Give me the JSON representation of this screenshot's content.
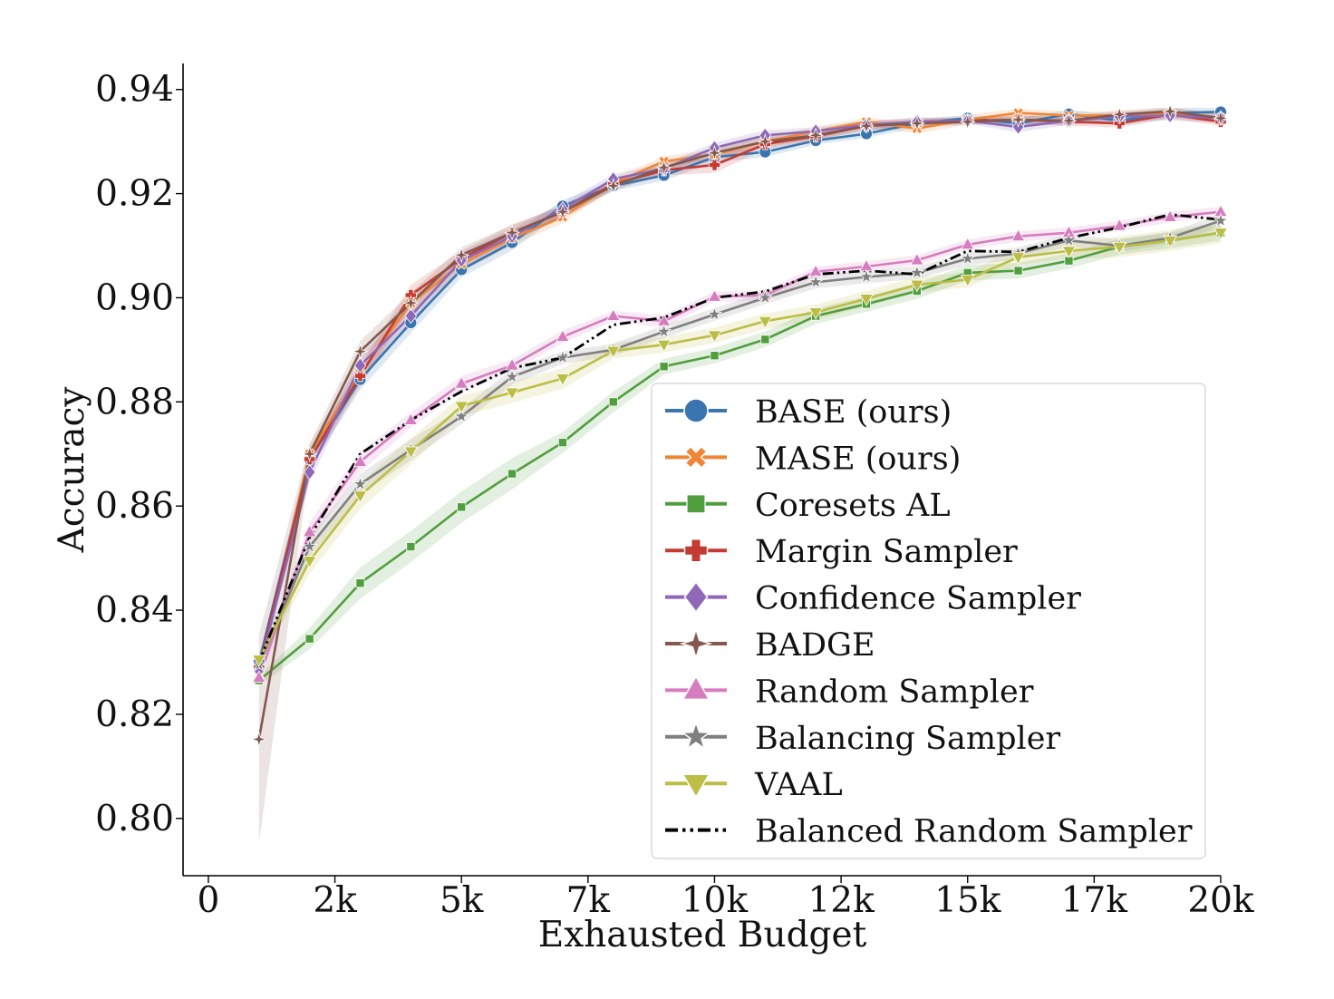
{
  "chart_data": {
    "type": "line",
    "title": "",
    "xlabel": "Exhausted Budget",
    "ylabel": "Accuracy",
    "xlim": [
      -500,
      20000
    ],
    "ylim": [
      0.789,
      0.945
    ],
    "xticks": [
      0,
      2500,
      5000,
      7500,
      10000,
      12500,
      15000,
      17500,
      20000
    ],
    "xticklabels": [
      "0",
      "2k",
      "5k",
      "7k",
      "10k",
      "12k",
      "15k",
      "17k",
      "20k"
    ],
    "yticks": [
      0.8,
      0.82,
      0.84,
      0.86,
      0.88,
      0.9,
      0.92,
      0.94
    ],
    "yticklabels": [
      "0.80",
      "0.82",
      "0.84",
      "0.86",
      "0.88",
      "0.90",
      "0.92",
      "0.94"
    ],
    "grid": false,
    "legend_position": "lower-right",
    "x": [
      1000,
      2000,
      3000,
      4000,
      5000,
      6000,
      7000,
      8000,
      9000,
      10000,
      11000,
      12000,
      13000,
      14000,
      15000,
      16000,
      17000,
      18000,
      19000,
      20000
    ],
    "series": [
      {
        "name": "BASE (ours)",
        "color": "#3b75af",
        "marker": "circle",
        "dash": "solid",
        "values": [
          0.83,
          0.869,
          0.8843,
          0.8952,
          0.9054,
          0.9106,
          0.9176,
          0.9215,
          0.9235,
          0.927,
          0.928,
          0.9302,
          0.9315,
          0.9335,
          0.9345,
          0.9335,
          0.9353,
          0.934,
          0.9355,
          0.9357
        ],
        "band": [
          0.001,
          0.002,
          0.002,
          0.002,
          0.0015,
          0.0015,
          0.0012,
          0.001,
          0.001,
          0.001,
          0.001,
          0.0008,
          0.0008,
          0.0008,
          0.0006,
          0.001,
          0.0008,
          0.001,
          0.001,
          0.0008
        ]
      },
      {
        "name": "MASE (ours)",
        "color": "#ef8636",
        "marker": "x",
        "dash": "solid",
        "values": [
          0.8275,
          0.87,
          0.8855,
          0.899,
          0.9065,
          0.9115,
          0.9155,
          0.922,
          0.9262,
          0.9275,
          0.93,
          0.932,
          0.9338,
          0.9325,
          0.9342,
          0.9355,
          0.935,
          0.935,
          0.9355,
          0.9345
        ],
        "band": [
          0.001,
          0.002,
          0.002,
          0.002,
          0.0015,
          0.0015,
          0.0012,
          0.001,
          0.001,
          0.001,
          0.001,
          0.0008,
          0.0008,
          0.001,
          0.001,
          0.0008,
          0.0008,
          0.0008,
          0.001,
          0.001
        ]
      },
      {
        "name": "Coresets AL",
        "color": "#519e3e",
        "marker": "square",
        "dash": "solid",
        "values": [
          0.8265,
          0.8345,
          0.8452,
          0.8522,
          0.8598,
          0.8662,
          0.8722,
          0.88,
          0.8868,
          0.8889,
          0.892,
          0.8965,
          0.8988,
          0.9013,
          0.9048,
          0.9052,
          0.9071,
          0.9098,
          0.911,
          0.9125
        ],
        "band": [
          0.001,
          0.002,
          0.003,
          0.003,
          0.003,
          0.003,
          0.002,
          0.002,
          0.0015,
          0.0015,
          0.0015,
          0.0015,
          0.0015,
          0.0015,
          0.0015,
          0.0015,
          0.0015,
          0.0015,
          0.0015,
          0.0015
        ]
      },
      {
        "name": "Margin Sampler",
        "color": "#c53a32",
        "marker": "plus",
        "dash": "solid",
        "values": [
          0.829,
          0.869,
          0.885,
          0.9005,
          0.9075,
          0.9125,
          0.9165,
          0.9218,
          0.9245,
          0.9255,
          0.9295,
          0.931,
          0.933,
          0.9338,
          0.934,
          0.9342,
          0.9338,
          0.9335,
          0.9352,
          0.9338
        ],
        "band": [
          0.001,
          0.002,
          0.002,
          0.002,
          0.0015,
          0.0015,
          0.0012,
          0.001,
          0.001,
          0.0015,
          0.001,
          0.0008,
          0.0008,
          0.0008,
          0.0006,
          0.0008,
          0.0008,
          0.0008,
          0.0008,
          0.0008
        ]
      },
      {
        "name": "Confidence Sampler",
        "color": "#8d69b8",
        "marker": "diamond",
        "dash": "solid",
        "values": [
          0.8285,
          0.8665,
          0.887,
          0.8965,
          0.9072,
          0.9118,
          0.917,
          0.9228,
          0.9248,
          0.9288,
          0.9312,
          0.932,
          0.9332,
          0.9338,
          0.934,
          0.9328,
          0.934,
          0.9348,
          0.935,
          0.9345
        ],
        "band": [
          0.001,
          0.002,
          0.002,
          0.002,
          0.0015,
          0.0015,
          0.0012,
          0.001,
          0.001,
          0.001,
          0.001,
          0.0008,
          0.0008,
          0.0008,
          0.0006,
          0.001,
          0.0008,
          0.0008,
          0.001,
          0.0008
        ]
      },
      {
        "name": "BADGE",
        "color": "#84584e",
        "marker": "star4",
        "dash": "solid",
        "values": [
          0.8152,
          0.87,
          0.8897,
          0.899,
          0.9082,
          0.9125,
          0.9165,
          0.9215,
          0.925,
          0.9278,
          0.93,
          0.9312,
          0.933,
          0.9335,
          0.9338,
          0.9342,
          0.934,
          0.9352,
          0.9358,
          0.9345
        ],
        "band": [
          0.02,
          0.002,
          0.002,
          0.002,
          0.0015,
          0.0015,
          0.0012,
          0.001,
          0.001,
          0.001,
          0.001,
          0.0008,
          0.0008,
          0.0008,
          0.0006,
          0.0008,
          0.0008,
          0.0008,
          0.0008,
          0.0008
        ]
      },
      {
        "name": "Random Sampler",
        "color": "#d57dbe",
        "marker": "triangle-up",
        "dash": "solid",
        "values": [
          0.827,
          0.855,
          0.8685,
          0.8765,
          0.8835,
          0.887,
          0.8925,
          0.8965,
          0.8955,
          0.9002,
          0.9005,
          0.905,
          0.906,
          0.9072,
          0.9102,
          0.9118,
          0.9125,
          0.9138,
          0.9155,
          0.9165
        ],
        "band": [
          0.001,
          0.002,
          0.002,
          0.0015,
          0.0015,
          0.0012,
          0.0012,
          0.001,
          0.0012,
          0.001,
          0.001,
          0.001,
          0.001,
          0.001,
          0.001,
          0.001,
          0.001,
          0.001,
          0.001,
          0.001
        ]
      },
      {
        "name": "Balancing Sampler",
        "color": "#7f7f7f",
        "marker": "star",
        "dash": "solid",
        "values": [
          0.8295,
          0.8522,
          0.8642,
          0.8708,
          0.8772,
          0.8848,
          0.8885,
          0.89,
          0.8935,
          0.8968,
          0.9,
          0.903,
          0.904,
          0.9048,
          0.9075,
          0.9085,
          0.911,
          0.91,
          0.9115,
          0.9148
        ],
        "band": [
          0.001,
          0.002,
          0.002,
          0.002,
          0.0015,
          0.0015,
          0.0012,
          0.0012,
          0.0012,
          0.0012,
          0.0012,
          0.0012,
          0.0012,
          0.0012,
          0.0012,
          0.0012,
          0.0012,
          0.0012,
          0.0012,
          0.0012
        ]
      },
      {
        "name": "VAAL",
        "color": "#bcbd45",
        "marker": "triangle-down",
        "dash": "solid",
        "values": [
          0.8305,
          0.8495,
          0.862,
          0.8705,
          0.8792,
          0.8818,
          0.8845,
          0.8898,
          0.891,
          0.8928,
          0.8955,
          0.8972,
          0.8998,
          0.9025,
          0.9035,
          0.9078,
          0.909,
          0.9098,
          0.911,
          0.9125
        ],
        "band": [
          0.001,
          0.0025,
          0.0025,
          0.0025,
          0.002,
          0.002,
          0.002,
          0.0015,
          0.0015,
          0.0015,
          0.0015,
          0.0015,
          0.0015,
          0.0015,
          0.0015,
          0.0015,
          0.0015,
          0.002,
          0.002,
          0.002
        ]
      },
      {
        "name": "Balanced Random Sampler",
        "color": "#000000",
        "marker": "none",
        "dash": "dashdotdot",
        "values": [
          0.83,
          0.854,
          0.87,
          0.8765,
          0.882,
          0.8865,
          0.8885,
          0.8948,
          0.8962,
          0.9,
          0.9012,
          0.9045,
          0.9052,
          0.9045,
          0.909,
          0.9088,
          0.9115,
          0.9135,
          0.916,
          0.915
        ],
        "band": [
          0,
          0,
          0,
          0,
          0,
          0,
          0,
          0,
          0,
          0,
          0,
          0,
          0,
          0,
          0,
          0,
          0,
          0,
          0,
          0
        ]
      }
    ]
  }
}
